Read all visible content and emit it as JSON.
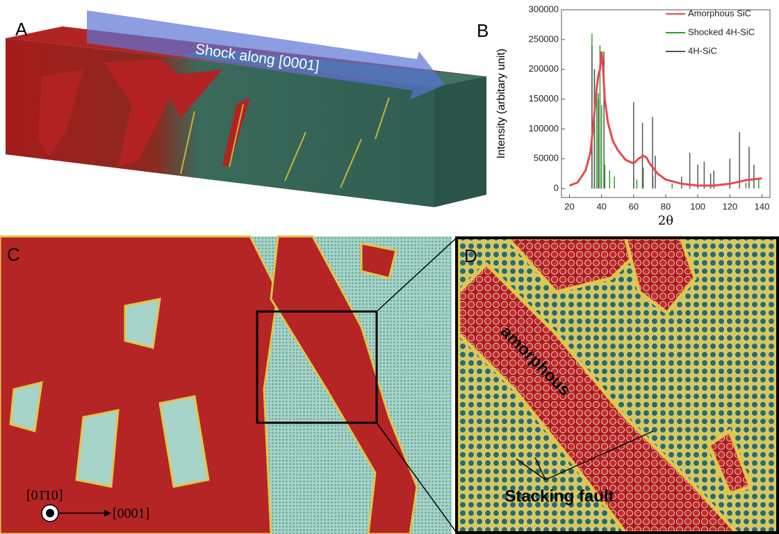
{
  "panels": {
    "a": {
      "label": "A",
      "annotation": "Shock along [0001]"
    },
    "b": {
      "label": "B"
    },
    "c": {
      "label": "C",
      "direction_out": "[01̄10]",
      "direction_right": "[0001]"
    },
    "d": {
      "label": "D",
      "region": "amorphous",
      "defect": "Stacking fault"
    }
  },
  "chart_data": {
    "type": "line",
    "xlabel": "2θ",
    "ylabel": "Intensity (arbitary unit)",
    "xlim": [
      15,
      145
    ],
    "ylim": [
      -15000,
      300000
    ],
    "xticks": [
      20,
      40,
      60,
      80,
      100,
      120,
      140
    ],
    "yticks": [
      0,
      50000,
      100000,
      150000,
      200000,
      250000,
      300000
    ],
    "legend": "upper right",
    "series": [
      {
        "name": "Amorphous SiC",
        "color": "#e8474f",
        "style": "line",
        "x": [
          20,
          25,
          30,
          33,
          35,
          37,
          38,
          39,
          40,
          41,
          42,
          44,
          47,
          50,
          55,
          60,
          63,
          66,
          68,
          70,
          75,
          80,
          90,
          100,
          110,
          120,
          130,
          140
        ],
        "values": [
          5000,
          10000,
          30000,
          60000,
          110000,
          170000,
          190000,
          200000,
          230000,
          200000,
          150000,
          110000,
          80000,
          65000,
          48000,
          42000,
          50000,
          55000,
          52000,
          42000,
          25000,
          15000,
          8000,
          5000,
          5000,
          8000,
          14000,
          17000
        ]
      },
      {
        "name": "Shocked 4H-SiC",
        "color": "#2e9e2e",
        "style": "stem",
        "x": [
          34,
          35.5,
          37,
          38,
          39,
          40,
          42,
          45,
          48,
          60,
          62,
          66,
          72,
          84,
          108,
          120,
          130,
          138
        ],
        "values": [
          260000,
          200000,
          170000,
          160000,
          240000,
          140000,
          40000,
          30000,
          20000,
          20000,
          15000,
          35000,
          20000,
          8000,
          8000,
          20000,
          10000,
          15000
        ]
      },
      {
        "name": "4H-SiC",
        "color": "#555555",
        "style": "stem",
        "x": [
          34,
          35.6,
          38,
          41.5,
          60,
          65.5,
          71.8,
          73.5,
          89.9,
          95,
          100,
          104,
          108,
          110,
          120,
          126,
          132,
          135
        ],
        "values": [
          240000,
          200000,
          150000,
          230000,
          145000,
          110000,
          120000,
          55000,
          20000,
          60000,
          40000,
          45000,
          25000,
          30000,
          50000,
          95000,
          70000,
          40000
        ]
      }
    ]
  }
}
